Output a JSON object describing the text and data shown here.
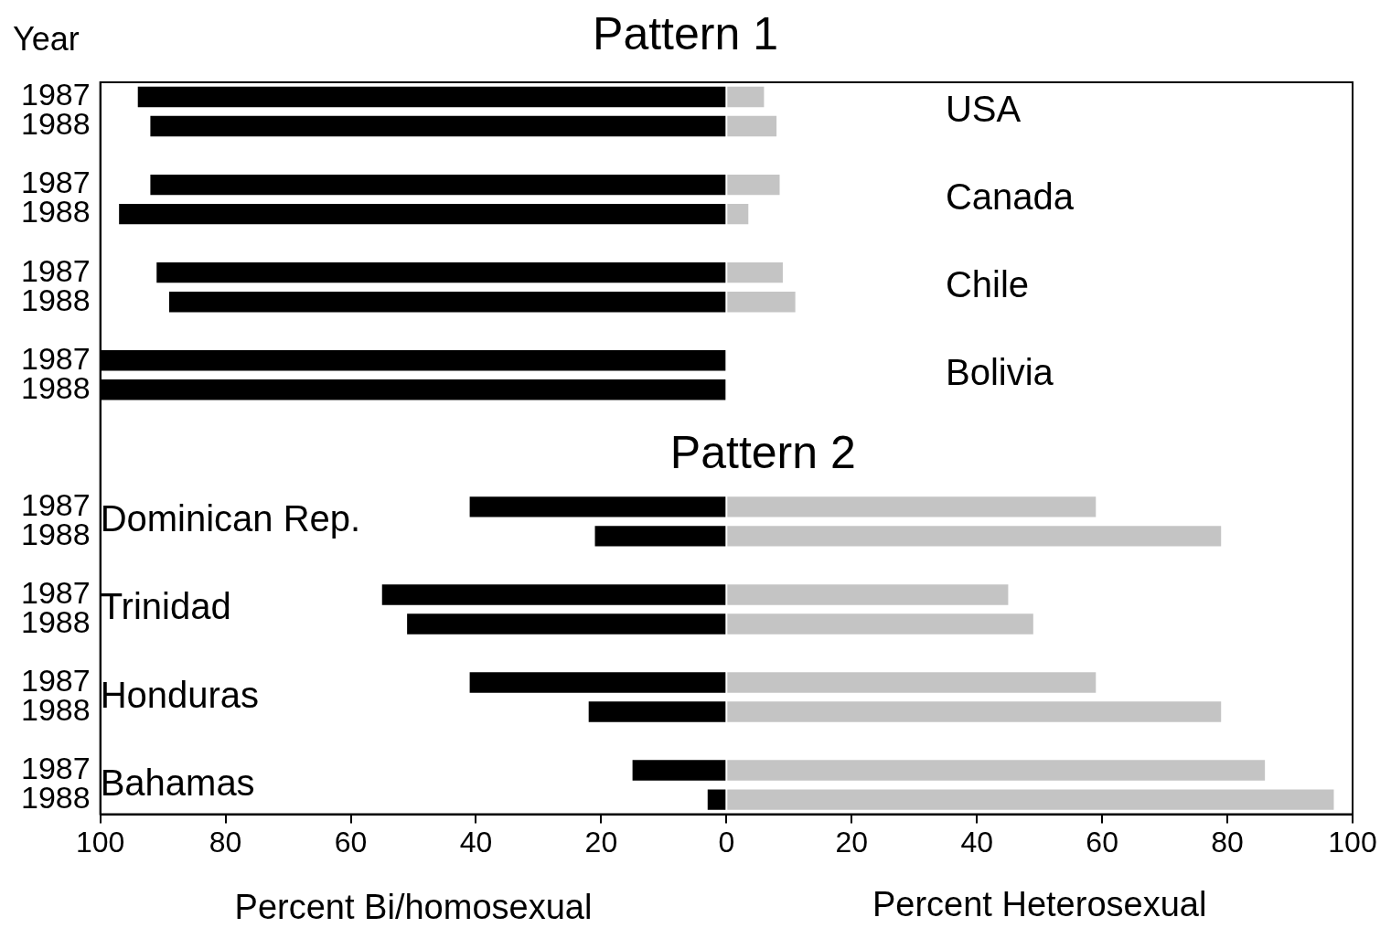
{
  "chart_data": {
    "type": "bar",
    "orientation": "horizontal",
    "stacked": true,
    "title": "Pattern 1",
    "ylabel": "Year",
    "xlabel": "Percent Bi/homosexual",
    "categories": [
      "1987",
      "1988",
      null,
      "1987",
      "1988",
      null,
      "1987",
      "1988",
      null,
      "1987",
      "1988",
      null,
      null,
      null,
      "1987",
      "1988",
      null,
      "1987",
      "1988",
      null,
      "1987",
      "1988",
      null,
      "1987",
      "1988"
    ],
    "series": [
      {
        "color": "#000000",
        "values": [
          -94,
          -92,
          null,
          -92,
          -97,
          null,
          -91,
          -89,
          null,
          -100,
          -100,
          null,
          null,
          null,
          -41,
          -21,
          null,
          -55,
          -51,
          null,
          -41,
          -22,
          null,
          -15,
          -3
        ]
      },
      {
        "color": "#c4c4c4",
        "values": [
          6,
          8,
          null,
          8.5,
          3.5,
          null,
          9,
          11,
          null,
          0,
          0,
          null,
          null,
          null,
          59,
          79,
          null,
          45,
          49,
          null,
          59,
          79,
          null,
          86,
          97
        ]
      }
    ],
    "xlim": [
      -100,
      100
    ],
    "xticks": [
      {
        "value": -100,
        "label": "100"
      },
      {
        "value": -80,
        "label": "80"
      },
      {
        "value": -60,
        "label": "60"
      },
      {
        "value": -40,
        "label": "40"
      },
      {
        "value": -20,
        "label": "20"
      },
      0,
      20,
      40,
      60,
      80,
      100
    ],
    "annotations": [
      "USA",
      "Canada",
      "Chile",
      "Bolivia",
      "Dominican Rep.",
      "Trinidad",
      "Honduras",
      "Bahamas",
      "Pattern 2",
      "Percent Heterosexual"
    ],
    "grid": false,
    "legend": false
  }
}
